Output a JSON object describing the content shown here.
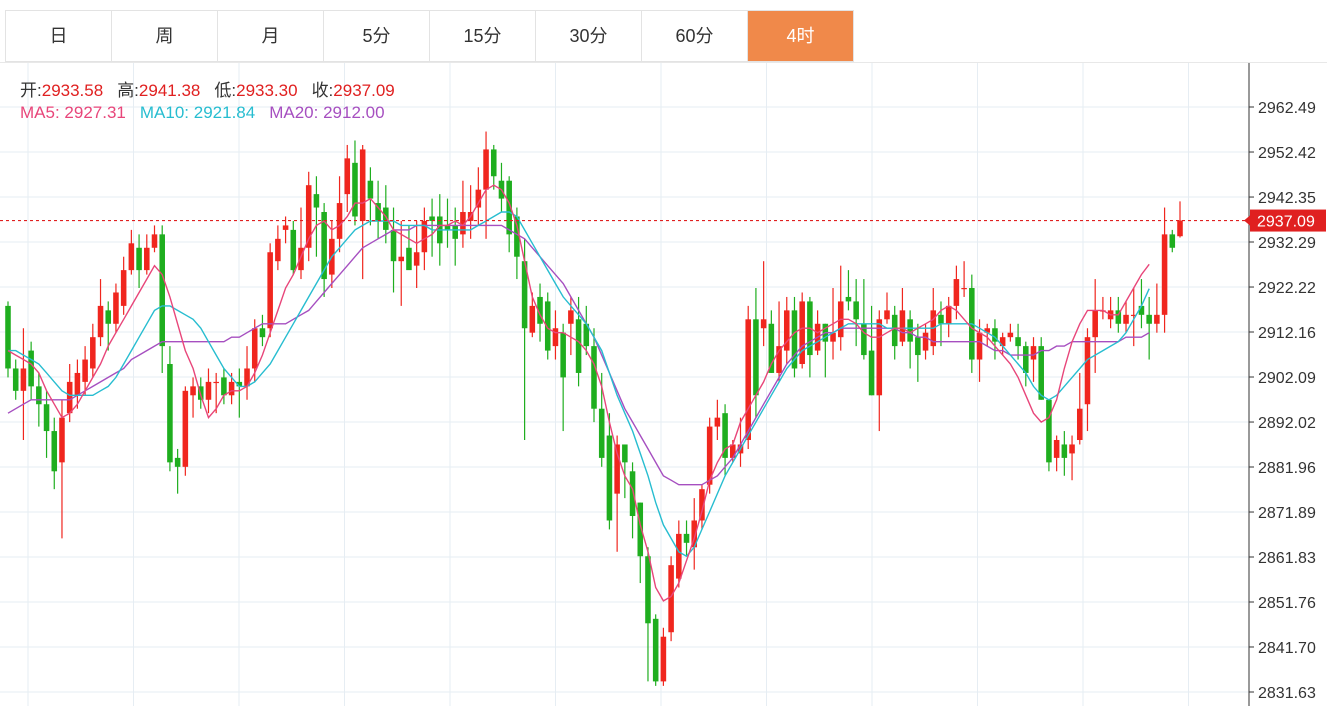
{
  "tabs": {
    "items": [
      {
        "label": "日"
      },
      {
        "label": "周"
      },
      {
        "label": "月"
      },
      {
        "label": "5分"
      },
      {
        "label": "15分"
      },
      {
        "label": "30分"
      },
      {
        "label": "60分"
      },
      {
        "label": "4时"
      }
    ],
    "active_index": 7
  },
  "info": {
    "open_label": "开:",
    "open_value": "2933.58",
    "high_label": "高:",
    "high_value": "2941.38",
    "low_label": "低:",
    "low_value": "2933.30",
    "close_label": "收:",
    "close_value": "2937.09",
    "ma5_label": "MA5:",
    "ma5_value": "2927.31",
    "ma10_label": "MA10:",
    "ma10_value": "2921.84",
    "ma20_label": "MA20:",
    "ma20_value": "2912.00"
  },
  "colors": {
    "up": "#f0261e",
    "down": "#1fae1f",
    "ma5": "#e8467a",
    "ma10": "#27bdd0",
    "ma20": "#a64fc0",
    "grid": "#e6edf3",
    "tab_active": "#f0894a",
    "price_line": "#e02020"
  },
  "chart_data": {
    "type": "candlestick",
    "title": "",
    "y_ticks": [
      "2962.49",
      "2952.42",
      "2942.35",
      "2932.29",
      "2922.22",
      "2912.16",
      "2902.09",
      "2892.02",
      "2881.96",
      "2871.89",
      "2861.83",
      "2851.76",
      "2841.70",
      "2831.63"
    ],
    "ylim": [
      2829.5,
      2971.5
    ],
    "last_price": "2937.09",
    "grid": true,
    "candles": [
      [
        2918,
        2904,
        2919,
        2902
      ],
      [
        2904,
        2899,
        2906,
        2897
      ],
      [
        2899,
        2904,
        2913,
        2888
      ],
      [
        2908,
        2900,
        2910,
        2897
      ],
      [
        2900,
        2896,
        2903,
        2891
      ],
      [
        2896,
        2890,
        2899,
        2884
      ],
      [
        2890,
        2881,
        2893,
        2877
      ],
      [
        2883,
        2893,
        2897,
        2866
      ],
      [
        2894,
        2901,
        2905,
        2892
      ],
      [
        2898,
        2903,
        2906,
        2895
      ],
      [
        2901,
        2906,
        2909,
        2898
      ],
      [
        2904,
        2911,
        2914,
        2902
      ],
      [
        2911,
        2918,
        2924,
        2909
      ],
      [
        2917,
        2914,
        2919,
        2908
      ],
      [
        2914,
        2921,
        2923,
        2912
      ],
      [
        2918,
        2926,
        2929,
        2916
      ],
      [
        2926,
        2932,
        2935,
        2925
      ],
      [
        2931,
        2926,
        2934,
        2922
      ],
      [
        2926,
        2931,
        2934,
        2925
      ],
      [
        2931,
        2934,
        2936,
        2930
      ],
      [
        2934,
        2909,
        2936,
        2903
      ],
      [
        2905,
        2883,
        2909,
        2881
      ],
      [
        2884,
        2882,
        2886,
        2876
      ],
      [
        2882,
        2899,
        2900,
        2880
      ],
      [
        2898,
        2900,
        2902,
        2893
      ],
      [
        2900,
        2897,
        2902,
        2895
      ],
      [
        2897,
        2901,
        2904,
        2894
      ],
      [
        2901,
        2901,
        2903,
        2894
      ],
      [
        2902,
        2898,
        2904,
        2896
      ],
      [
        2898,
        2901,
        2903,
        2896
      ],
      [
        2901,
        2900,
        2904,
        2893
      ],
      [
        2900,
        2904,
        2909,
        2897
      ],
      [
        2904,
        2913,
        2915,
        2901
      ],
      [
        2913,
        2911,
        2916,
        2909
      ],
      [
        2913,
        2930,
        2932,
        2911
      ],
      [
        2928,
        2933,
        2936,
        2926
      ],
      [
        2935,
        2936,
        2938,
        2932
      ],
      [
        2935,
        2926,
        2937,
        2925
      ],
      [
        2926,
        2931,
        2940,
        2924
      ],
      [
        2931,
        2945,
        2948,
        2928
      ],
      [
        2943,
        2940,
        2947,
        2929
      ],
      [
        2939,
        2924,
        2941,
        2920
      ],
      [
        2925,
        2933,
        2937,
        2922
      ],
      [
        2933,
        2941,
        2947,
        2930
      ],
      [
        2943,
        2951,
        2954,
        2939
      ],
      [
        2950,
        2938,
        2955,
        2936
      ],
      [
        2937,
        2953,
        2954,
        2924
      ],
      [
        2946,
        2942,
        2949,
        2936
      ],
      [
        2941,
        2937,
        2946,
        2933
      ],
      [
        2940,
        2935,
        2945,
        2932
      ],
      [
        2935,
        2928,
        2940,
        2921
      ],
      [
        2928,
        2929,
        2937,
        2918
      ],
      [
        2931,
        2926,
        2936,
        2927
      ],
      [
        2927,
        2930,
        2937,
        2922
      ],
      [
        2930,
        2937,
        2940,
        2926
      ],
      [
        2938,
        2937,
        2942,
        2929
      ],
      [
        2938,
        2932,
        2943,
        2927
      ],
      [
        2936,
        2935,
        2942,
        2931
      ],
      [
        2936,
        2933,
        2940,
        2927
      ],
      [
        2934,
        2939,
        2946,
        2931
      ],
      [
        2937,
        2939,
        2945,
        2933
      ],
      [
        2940,
        2944,
        2949,
        2936
      ],
      [
        2944,
        2953,
        2957,
        2933
      ],
      [
        2953,
        2947,
        2954,
        2944
      ],
      [
        2946,
        2942,
        2950,
        2939
      ],
      [
        2946,
        2934,
        2947,
        2930
      ],
      [
        2938,
        2929,
        2940,
        2924
      ],
      [
        2928,
        2913,
        2933,
        2888
      ],
      [
        2912,
        2918,
        2921,
        2911
      ],
      [
        2920,
        2914,
        2923,
        2910
      ],
      [
        2919,
        2908,
        2921,
        2906
      ],
      [
        2909,
        2913,
        2917,
        2906
      ],
      [
        2912,
        2902,
        2914,
        2890
      ],
      [
        2914,
        2917,
        2920,
        2907
      ],
      [
        2915,
        2903,
        2920,
        2900
      ],
      [
        2914,
        2909,
        2918,
        2907
      ],
      [
        2909,
        2895,
        2913,
        2892
      ],
      [
        2895,
        2884,
        2903,
        2882
      ],
      [
        2889,
        2870,
        2894,
        2868
      ],
      [
        2876,
        2887,
        2889,
        2863
      ],
      [
        2887,
        2883,
        2887,
        2875
      ],
      [
        2881,
        2871,
        2883,
        2866
      ],
      [
        2874,
        2862,
        2874,
        2856
      ],
      [
        2862,
        2847,
        2864,
        2834
      ],
      [
        2848,
        2834,
        2849,
        2833
      ],
      [
        2834,
        2844,
        2846,
        2833
      ],
      [
        2845,
        2860,
        2862,
        2843
      ],
      [
        2857,
        2867,
        2870,
        2855
      ],
      [
        2867,
        2865,
        2870,
        2862
      ],
      [
        2864,
        2870,
        2875,
        2859
      ],
      [
        2870,
        2877,
        2878,
        2868
      ],
      [
        2878,
        2891,
        2893,
        2876
      ],
      [
        2891,
        2893,
        2897,
        2888
      ],
      [
        2894,
        2884,
        2896,
        2880
      ],
      [
        2884,
        2887,
        2888,
        2883
      ],
      [
        2885,
        2887,
        2893,
        2882
      ],
      [
        2888,
        2915,
        2918,
        2886
      ],
      [
        2915,
        2898,
        2922,
        2893
      ],
      [
        2913,
        2915,
        2928,
        2909
      ],
      [
        2914,
        2903,
        2917,
        2903
      ],
      [
        2903,
        2909,
        2919,
        2901
      ],
      [
        2908,
        2917,
        2920,
        2905
      ],
      [
        2917,
        2904,
        2920,
        2902
      ],
      [
        2905,
        2919,
        2921,
        2904
      ],
      [
        2919,
        2907,
        2920,
        2902
      ],
      [
        2908,
        2914,
        2917,
        2907
      ],
      [
        2914,
        2910,
        2914,
        2902
      ],
      [
        2910,
        2912,
        2922,
        2906
      ],
      [
        2911,
        2919,
        2927,
        2908
      ],
      [
        2920,
        2919,
        2926,
        2917
      ],
      [
        2919,
        2915,
        2924,
        2909
      ],
      [
        2914,
        2907,
        2924,
        2906
      ],
      [
        2908,
        2898,
        2918,
        2898
      ],
      [
        2898,
        2915,
        2917,
        2890
      ],
      [
        2915,
        2917,
        2921,
        2914
      ],
      [
        2916,
        2909,
        2918,
        2906
      ],
      [
        2910,
        2917,
        2922,
        2909
      ],
      [
        2915,
        2910,
        2917,
        2904
      ],
      [
        2911,
        2907,
        2914,
        2901
      ],
      [
        2908,
        2912,
        2914,
        2906
      ],
      [
        2909,
        2917,
        2922,
        2907
      ],
      [
        2916,
        2914,
        2919,
        2909
      ],
      [
        2914,
        2918,
        2920,
        2911
      ],
      [
        2918,
        2924,
        2927,
        2915
      ],
      [
        2922,
        2922,
        2928,
        2920
      ],
      [
        2922,
        2906,
        2925,
        2903
      ],
      [
        2906,
        2912,
        2915,
        2901
      ],
      [
        2912,
        2913,
        2914,
        2909
      ],
      [
        2913,
        2910,
        2915,
        2906
      ],
      [
        2909,
        2911,
        2912,
        2907
      ],
      [
        2911,
        2912,
        2914,
        2910
      ],
      [
        2911,
        2909,
        2914,
        2906
      ],
      [
        2909,
        2903,
        2910,
        2900
      ],
      [
        2906,
        2909,
        2911,
        2901
      ],
      [
        2909,
        2897,
        2911,
        2897
      ],
      [
        2897,
        2883,
        2897,
        2881
      ],
      [
        2884,
        2888,
        2889,
        2881
      ],
      [
        2887,
        2884,
        2890,
        2880
      ],
      [
        2885,
        2887,
        2889,
        2879
      ],
      [
        2888,
        2895,
        2903,
        2887
      ],
      [
        2896,
        2911,
        2913,
        2890
      ],
      [
        2911,
        2917,
        2924,
        2903
      ],
      [
        2917,
        2917,
        2920,
        2915
      ],
      [
        2915,
        2917,
        2920,
        2913
      ],
      [
        2917,
        2914,
        2920,
        2912
      ],
      [
        2914,
        2916,
        2919,
        2912
      ],
      [
        2916,
        2916,
        2922,
        2909
      ],
      [
        2918,
        2916,
        2924,
        2913
      ],
      [
        2916,
        2914,
        2920,
        2906
      ],
      [
        2914,
        2916,
        2923,
        2912
      ],
      [
        2916,
        2934,
        2940,
        2912
      ],
      [
        2934,
        2931,
        2935,
        2930
      ],
      [
        2933.58,
        2937.09,
        2941.38,
        2933.3
      ]
    ],
    "ma5": [
      2908,
      2907,
      2906,
      2905,
      2903,
      2899,
      2896,
      2893,
      2894,
      2896,
      2899,
      2902,
      2905,
      2909,
      2912,
      2915,
      2918,
      2921,
      2924,
      2927,
      2925,
      2920,
      2914,
      2908,
      2904,
      2898,
      2893,
      2895,
      2898,
      2899,
      2899,
      2900,
      2903,
      2907,
      2912,
      2917,
      2922,
      2925,
      2929,
      2933,
      2936,
      2937,
      2935,
      2936,
      2938,
      2941,
      2941,
      2942,
      2940,
      2938,
      2935,
      2934,
      2933,
      2932,
      2933,
      2934,
      2936,
      2936,
      2937,
      2936,
      2938,
      2941,
      2944,
      2945,
      2944,
      2941,
      2936,
      2928,
      2920,
      2916,
      2913,
      2912,
      2912,
      2911,
      2910,
      2908,
      2905,
      2900,
      2892,
      2885,
      2880,
      2877,
      2869,
      2863,
      2855,
      2852,
      2853,
      2856,
      2861,
      2866,
      2872,
      2879,
      2883,
      2886,
      2887,
      2892,
      2895,
      2898,
      2901,
      2905,
      2908,
      2910,
      2912,
      2913,
      2913,
      2912,
      2913,
      2914,
      2915,
      2915,
      2914,
      2912,
      2911,
      2911,
      2912,
      2913,
      2913,
      2912,
      2913,
      2914,
      2915,
      2917,
      2918,
      2917,
      2915,
      2913,
      2912,
      2911,
      2909,
      2907,
      2905,
      2902,
      2898,
      2894,
      2892,
      2893,
      2897,
      2904,
      2910,
      2914,
      2917,
      2917,
      2917,
      2916,
      2916,
      2919,
      2922,
      2925,
      2927.31
    ],
    "ma10": [
      2908,
      2908,
      2907,
      2906,
      2905,
      2903,
      2901,
      2899,
      2898,
      2898,
      2898,
      2898,
      2899,
      2900,
      2902,
      2905,
      2908,
      2911,
      2914,
      2917,
      2918,
      2918,
      2917,
      2916,
      2915,
      2913,
      2910,
      2907,
      2904,
      2902,
      2900,
      2900,
      2901,
      2903,
      2905,
      2908,
      2911,
      2914,
      2917,
      2920,
      2923,
      2926,
      2929,
      2931,
      2933,
      2935,
      2936,
      2937,
      2937,
      2937,
      2937,
      2936,
      2936,
      2936,
      2936,
      2935,
      2935,
      2935,
      2935,
      2935,
      2935,
      2936,
      2937,
      2938,
      2939,
      2939,
      2938,
      2935,
      2932,
      2929,
      2926,
      2923,
      2920,
      2918,
      2916,
      2914,
      2911,
      2908,
      2903,
      2898,
      2894,
      2890,
      2885,
      2880,
      2874,
      2869,
      2866,
      2863,
      2862,
      2864,
      2868,
      2872,
      2876,
      2880,
      2883,
      2886,
      2889,
      2892,
      2895,
      2898,
      2901,
      2904,
      2906,
      2908,
      2909,
      2910,
      2911,
      2912,
      2913,
      2914,
      2914,
      2914,
      2914,
      2914,
      2913,
      2913,
      2913,
      2913,
      2913,
      2913,
      2913,
      2914,
      2914,
      2914,
      2914,
      2914,
      2913,
      2912,
      2911,
      2909,
      2907,
      2905,
      2903,
      2900,
      2898,
      2897,
      2898,
      2900,
      2902,
      2904,
      2906,
      2907,
      2908,
      2909,
      2910,
      2912,
      2915,
      2918,
      2921.84
    ],
    "ma20": [
      2894,
      2895,
      2896,
      2897,
      2897,
      2897,
      2897,
      2897,
      2897,
      2898,
      2899,
      2900,
      2901,
      2902,
      2903,
      2904,
      2906,
      2907,
      2908,
      2909,
      2910,
      2910,
      2910,
      2910,
      2910,
      2910,
      2910,
      2910,
      2910,
      2911,
      2911,
      2912,
      2913,
      2914,
      2914,
      2914,
      2914,
      2915,
      2916,
      2917,
      2919,
      2921,
      2923,
      2925,
      2927,
      2929,
      2931,
      2932,
      2933,
      2934,
      2935,
      2935,
      2935,
      2936,
      2936,
      2936,
      2936,
      2936,
      2936,
      2936,
      2936,
      2936,
      2936,
      2936,
      2936,
      2935,
      2934,
      2933,
      2931,
      2929,
      2927,
      2925,
      2923,
      2920,
      2917,
      2914,
      2911,
      2907,
      2903,
      2899,
      2895,
      2892,
      2889,
      2886,
      2883,
      2880,
      2879,
      2878,
      2878,
      2878,
      2878,
      2879,
      2880,
      2882,
      2884,
      2887,
      2890,
      2893,
      2896,
      2899,
      2902,
      2905,
      2907,
      2909,
      2910,
      2911,
      2912,
      2912,
      2913,
      2913,
      2913,
      2913,
      2913,
      2913,
      2913,
      2913,
      2912,
      2912,
      2911,
      2911,
      2910,
      2910,
      2910,
      2910,
      2910,
      2910,
      2910,
      2909,
      2908,
      2908,
      2907,
      2907,
      2907,
      2907,
      2908,
      2908,
      2909,
      2909,
      2910,
      2910,
      2910,
      2910,
      2910,
      2910,
      2910,
      2911,
      2911,
      2911,
      2912.0
    ]
  }
}
